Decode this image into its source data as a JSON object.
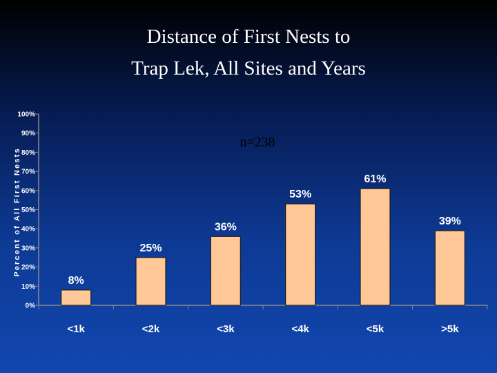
{
  "slide": {
    "title_line1": "Distance of First Nests to",
    "title_line2": "Trap Lek, All Sites and Years"
  },
  "chart_data": {
    "type": "bar",
    "title": "Distance of First Nests to Trap Lek, All Sites and Years",
    "annotation": "n=238",
    "ylabel": "Percent of All First Nests",
    "xlabel": "",
    "categories": [
      "<1k",
      "<2k",
      "<3k",
      "<4k",
      "<5k",
      ">5k"
    ],
    "values": [
      8,
      25,
      36,
      53,
      61,
      39
    ],
    "data_labels": [
      "8%",
      "25%",
      "36%",
      "53%",
      "61%",
      "39%"
    ],
    "y_ticks": [
      "0%",
      "10%",
      "20%",
      "30%",
      "40%",
      "50%",
      "60%",
      "70%",
      "80%",
      "90%",
      "100%"
    ],
    "ylim": [
      0,
      100
    ],
    "grid": false,
    "legend": "none",
    "colors": {
      "bar": "#ffc896",
      "bar_edge": "#1c1c1c",
      "axis": "#8a8a8a",
      "text": "#ffffff"
    }
  }
}
